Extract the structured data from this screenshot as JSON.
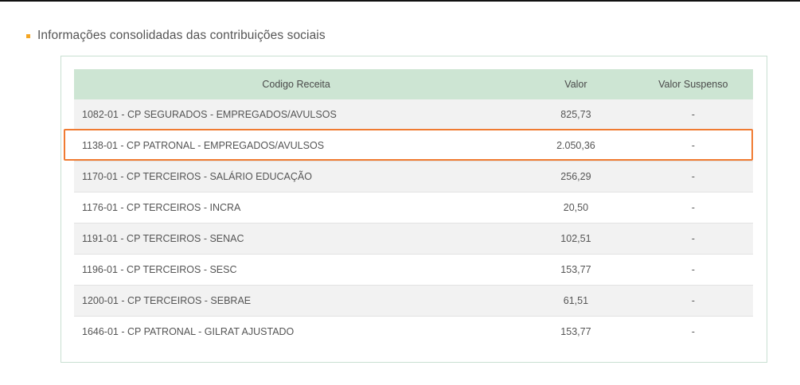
{
  "section": {
    "title": "Informações consolidadas das contribuições sociais"
  },
  "colors": {
    "bullet": "#f5a623",
    "header_bg": "#cde5d3",
    "highlight": "#f07b32"
  },
  "table": {
    "headers": [
      "Codigo Receita",
      "Valor",
      "Valor Suspenso"
    ],
    "rows": [
      {
        "codigo": "1082-01 - CP SEGURADOS - EMPREGADOS/AVULSOS",
        "valor": "825,73",
        "suspenso": "-"
      },
      {
        "codigo": "1138-01 - CP PATRONAL - EMPREGADOS/AVULSOS",
        "valor": "2.050,36",
        "suspenso": "-"
      },
      {
        "codigo": "1170-01 - CP TERCEIROS - SALÁRIO EDUCAÇÃO",
        "valor": "256,29",
        "suspenso": "-"
      },
      {
        "codigo": "1176-01 - CP TERCEIROS - INCRA",
        "valor": "20,50",
        "suspenso": "-"
      },
      {
        "codigo": "1191-01 - CP TERCEIROS - SENAC",
        "valor": "102,51",
        "suspenso": "-"
      },
      {
        "codigo": "1196-01 - CP TERCEIROS - SESC",
        "valor": "153,77",
        "suspenso": "-"
      },
      {
        "codigo": "1200-01 - CP TERCEIROS - SEBRAE",
        "valor": "61,51",
        "suspenso": "-"
      },
      {
        "codigo": "1646-01 - CP PATRONAL - GILRAT AJUSTADO",
        "valor": "153,77",
        "suspenso": "-"
      }
    ],
    "highlighted_row": 1
  }
}
